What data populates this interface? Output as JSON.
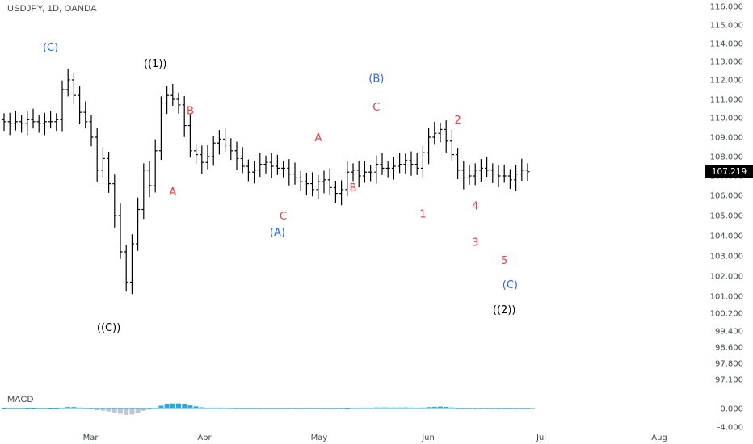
{
  "title": "USDJPY, 1D, OANDA",
  "macd_label": "MACD",
  "last_price_label": "107.219",
  "colors": {
    "bars": "#000000",
    "wave_red": "#f23645",
    "wave_blue": "#2962ff",
    "wave_black": "#000000",
    "macd_pos": "#2aa7df",
    "macd_neg": "#c2c5cc"
  },
  "chart_data": {
    "type": "ohlc",
    "symbol": "USDJPY",
    "timeframe": "1D",
    "x_labels": [
      "Mar",
      "Apr",
      "May",
      "Jun",
      "Jul",
      "Aug"
    ],
    "y_ticks": [
      "116.000",
      "115.000",
      "114.000",
      "113.000",
      "112.000",
      "111.000",
      "110.000",
      "109.000",
      "108.000",
      "107.000",
      "106.000",
      "105.000",
      "104.000",
      "103.000",
      "102.000",
      "101.000",
      "100.200",
      "99.400",
      "98.600",
      "97.800",
      "97.100"
    ],
    "macd_ticks": [
      "0.000",
      "-4.000"
    ],
    "close_series": [
      109.8,
      109.7,
      109.8,
      109.7,
      109.9,
      109.8,
      109.7,
      109.8,
      109.8,
      109.9,
      111.5,
      112.0,
      111.2,
      110.3,
      109.8,
      109.0,
      107.3,
      107.9,
      106.6,
      105.0,
      103.2,
      101.7,
      103.6,
      105.3,
      107.3,
      106.5,
      108.3,
      110.8,
      111.2,
      111.0,
      110.7,
      109.6,
      108.3,
      108.1,
      107.7,
      108.0,
      108.7,
      108.9,
      108.6,
      108.3,
      107.9,
      107.5,
      107.2,
      107.3,
      107.6,
      107.7,
      107.5,
      107.4,
      107.4,
      107.1,
      106.9,
      106.7,
      106.6,
      106.3,
      106.7,
      106.8,
      106.4,
      106.1,
      106.3,
      107.2,
      107.3,
      107.0,
      107.2,
      107.2,
      107.6,
      107.4,
      107.4,
      107.5,
      107.6,
      107.8,
      107.6,
      107.4,
      108.2,
      109.0,
      109.2,
      109.4,
      108.8,
      108.1,
      107.3,
      106.9,
      107.0,
      107.3,
      107.4,
      107.3,
      107.1,
      107.0,
      107.0,
      106.8,
      107.1,
      107.3,
      107.219
    ],
    "wave_labels": [
      {
        "text": "(C)",
        "color": "blue",
        "price": 113.6,
        "index": 8
      },
      {
        "text": "((1))",
        "color": "black",
        "price": 112.7,
        "index": 26
      },
      {
        "text": "B",
        "color": "red",
        "price": 110.2,
        "index": 32
      },
      {
        "text": "A",
        "color": "red",
        "price": 106.0,
        "index": 29
      },
      {
        "text": "((C))",
        "color": "black",
        "price": 99.4,
        "index": 18
      },
      {
        "text": "A",
        "color": "red",
        "price": 108.8,
        "index": 54
      },
      {
        "text": "C",
        "color": "red",
        "price": 104.8,
        "index": 48
      },
      {
        "text": "(A)",
        "color": "blue",
        "price": 104.0,
        "index": 47
      },
      {
        "text": "B",
        "color": "red",
        "price": 106.2,
        "index": 60
      },
      {
        "text": "(B)",
        "color": "blue",
        "price": 111.9,
        "index": 64
      },
      {
        "text": "C",
        "color": "red",
        "price": 110.4,
        "index": 64
      },
      {
        "text": "1",
        "color": "red",
        "price": 104.9,
        "index": 72
      },
      {
        "text": "2",
        "color": "red",
        "price": 109.7,
        "index": 78
      },
      {
        "text": "4",
        "color": "red",
        "price": 105.3,
        "index": 81
      },
      {
        "text": "3",
        "color": "red",
        "price": 103.5,
        "index": 81
      },
      {
        "text": "5",
        "color": "red",
        "price": 102.6,
        "index": 86
      },
      {
        "text": "(C)",
        "color": "blue",
        "price": 101.4,
        "index": 87
      },
      {
        "text": "((2))",
        "color": "black",
        "price": 100.2,
        "index": 86
      }
    ]
  }
}
